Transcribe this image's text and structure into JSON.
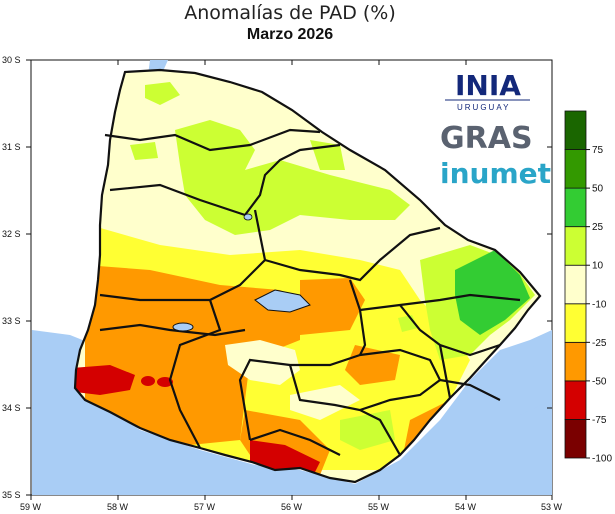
{
  "title": "Anomalías de PAD (%)",
  "subtitle": "Marzo 2026",
  "axes": {
    "lat_labels": [
      "30 S",
      "31 S",
      "32 S",
      "33 S",
      "34 S",
      "35 S"
    ],
    "lon_labels": [
      "59 W",
      "58 W",
      "57 W",
      "56 W",
      "55 W",
      "54 W",
      "53 W"
    ]
  },
  "logos": {
    "inia": "INIA",
    "inia_sub": "URUGUAY",
    "gras": "GRAS",
    "inumet": "inumet"
  },
  "colorbar": {
    "colors": [
      "#7a0000",
      "#d40000",
      "#ff9900",
      "#ffff33",
      "#ffffcc",
      "#ccff33",
      "#33cc33",
      "#339900",
      "#1a6600"
    ],
    "tick_labels": [
      "-100",
      "-75",
      "-50",
      "-25",
      "-10",
      "10",
      "25",
      "50",
      "75"
    ]
  },
  "colors": {
    "water": "#a9cdf5",
    "border": "#111111"
  }
}
